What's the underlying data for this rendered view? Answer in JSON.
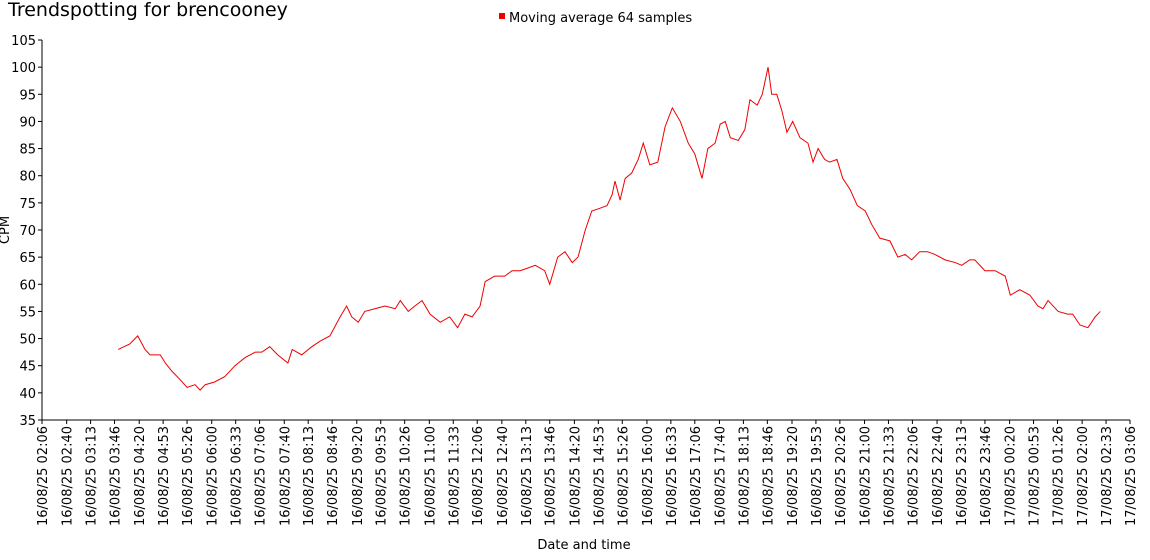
{
  "chart_data": {
    "type": "line",
    "title": "Trendspotting for brencooney",
    "xlabel": "Date and time",
    "ylabel": "CPM",
    "legend": "top",
    "ylim": [
      35,
      105
    ],
    "yticks": [
      35,
      40,
      45,
      50,
      55,
      60,
      65,
      70,
      75,
      80,
      85,
      90,
      95,
      100,
      105
    ],
    "xlim": [
      "16/08/25 02:06",
      "17/08/25 03:06"
    ],
    "xticks": [
      "16/08/25 02:06",
      "16/08/25 02:40",
      "16/08/25 03:13",
      "16/08/25 03:46",
      "16/08/25 04:20",
      "16/08/25 04:53",
      "16/08/25 05:26",
      "16/08/25 06:00",
      "16/08/25 06:33",
      "16/08/25 07:06",
      "16/08/25 07:40",
      "16/08/25 08:13",
      "16/08/25 08:46",
      "16/08/25 09:20",
      "16/08/25 09:53",
      "16/08/25 10:26",
      "16/08/25 11:00",
      "16/08/25 11:33",
      "16/08/25 12:06",
      "16/08/25 12:40",
      "16/08/25 13:13",
      "16/08/25 13:46",
      "16/08/25 14:20",
      "16/08/25 14:53",
      "16/08/25 15:26",
      "16/08/25 16:00",
      "16/08/25 16:33",
      "16/08/25 17:06",
      "16/08/25 17:40",
      "16/08/25 18:13",
      "16/08/25 18:46",
      "16/08/25 19:20",
      "16/08/25 19:53",
      "16/08/25 20:26",
      "16/08/25 21:00",
      "16/08/25 21:33",
      "16/08/25 22:06",
      "16/08/25 22:40",
      "16/08/25 23:13",
      "16/08/25 23:46",
      "17/08/25 00:20",
      "17/08/25 00:53",
      "17/08/25 01:26",
      "17/08/25 02:00",
      "17/08/25 02:33",
      "17/08/25 03:06"
    ],
    "x": [
      "16/08/25 03:51",
      "16/08/25 04:07",
      "16/08/25 04:18",
      "16/08/25 04:28",
      "16/08/25 04:35",
      "16/08/25 04:49",
      "16/08/25 04:56",
      "16/08/25 05:05",
      "16/08/25 05:16",
      "16/08/25 05:26",
      "16/08/25 05:37",
      "16/08/25 05:44",
      "16/08/25 05:51",
      "16/08/25 06:04",
      "16/08/25 06:18",
      "16/08/25 06:32",
      "16/08/25 06:46",
      "16/08/25 07:00",
      "16/08/25 07:09",
      "16/08/25 07:20",
      "16/08/25 07:31",
      "16/08/25 07:45",
      "16/08/25 07:51",
      "16/08/25 08:04",
      "16/08/25 08:18",
      "16/08/25 08:29",
      "16/08/25 08:43",
      "16/08/25 08:57",
      "16/08/25 09:06",
      "16/08/25 09:13",
      "16/08/25 09:22",
      "16/08/25 09:31",
      "16/08/25 09:45",
      "16/08/25 09:59",
      "16/08/25 10:13",
      "16/08/25 10:20",
      "16/08/25 10:31",
      "16/08/25 10:40",
      "16/08/25 10:50",
      "16/08/25 11:01",
      "16/08/25 11:15",
      "16/08/25 11:28",
      "16/08/25 11:39",
      "16/08/25 11:49",
      "16/08/25 11:59",
      "16/08/25 12:10",
      "16/08/25 12:17",
      "16/08/25 12:30",
      "16/08/25 12:44",
      "16/08/25 12:54",
      "16/08/25 13:05",
      "16/08/25 13:16",
      "16/08/25 13:26",
      "16/08/25 13:39",
      "16/08/25 13:46",
      "16/08/25 13:57",
      "16/08/25 14:07",
      "16/08/25 14:17",
      "16/08/25 14:25",
      "16/08/25 14:35",
      "16/08/25 14:44",
      "16/08/25 14:55",
      "16/08/25 15:05",
      "16/08/25 15:12",
      "16/08/25 15:16",
      "16/08/25 15:23",
      "16/08/25 15:30",
      "16/08/25 15:39",
      "16/08/25 15:48",
      "16/08/25 15:55",
      "16/08/25 16:04",
      "16/08/25 16:15",
      "16/08/25 16:25",
      "16/08/25 16:35",
      "16/08/25 16:46",
      "16/08/25 16:57",
      "16/08/25 17:06",
      "16/08/25 17:16",
      "16/08/25 17:24",
      "16/08/25 17:34",
      "16/08/25 17:41",
      "16/08/25 17:48",
      "16/08/25 17:55",
      "16/08/25 18:06",
      "16/08/25 18:15",
      "16/08/25 18:22",
      "16/08/25 18:32",
      "16/08/25 18:39",
      "16/08/25 18:47",
      "16/08/25 18:52",
      "16/08/25 18:59",
      "16/08/25 19:06",
      "16/08/25 19:13",
      "16/08/25 19:21",
      "16/08/25 19:31",
      "16/08/25 19:42",
      "16/08/25 19:49",
      "16/08/25 19:56",
      "16/08/25 20:05",
      "16/08/25 20:12",
      "16/08/25 20:22",
      "16/08/25 20:30",
      "16/08/25 20:40",
      "16/08/25 20:50",
      "16/08/25 21:01",
      "16/08/25 21:10",
      "16/08/25 21:21",
      "16/08/25 21:35",
      "16/08/25 21:46",
      "16/08/25 21:56",
      "16/08/25 22:05",
      "16/08/25 22:16",
      "16/08/25 22:27",
      "16/08/25 22:37",
      "16/08/25 22:51",
      "16/08/25 23:05",
      "16/08/25 23:14",
      "16/08/25 23:25",
      "16/08/25 23:32",
      "16/08/25 23:46",
      "17/08/25 00:00",
      "17/08/25 00:14",
      "17/08/25 00:21",
      "17/08/25 00:34",
      "17/08/25 00:48",
      "17/08/25 00:59",
      "17/08/25 01:06",
      "17/08/25 01:13",
      "17/08/25 01:27",
      "17/08/25 01:40",
      "17/08/25 01:47",
      "17/08/25 01:57",
      "17/08/25 02:08",
      "17/08/25 02:18",
      "17/08/25 02:25"
    ],
    "series": [
      {
        "name": "Moving average 64 samples",
        "color": "#ee0000",
        "values": [
          48,
          49,
          50.5,
          48,
          47,
          47,
          45.5,
          44,
          42.5,
          41,
          41.5,
          40.5,
          41.5,
          42,
          43,
          45,
          46.5,
          47.5,
          47.5,
          48.5,
          47,
          45.5,
          48,
          47,
          48.5,
          49.5,
          50.5,
          54,
          56,
          54,
          53,
          55,
          55.5,
          56,
          55.5,
          57,
          55,
          56,
          57,
          54.5,
          53,
          54,
          52,
          54.5,
          54,
          56,
          60.5,
          61.5,
          61.5,
          62.5,
          62.5,
          63,
          63.5,
          62.5,
          60,
          65,
          66,
          64,
          65,
          70,
          73.5,
          74,
          74.5,
          76.5,
          79,
          75.5,
          79.5,
          80.5,
          83,
          86,
          82,
          82.5,
          89,
          92.5,
          90,
          86,
          84,
          79.5,
          85,
          86,
          89.5,
          90,
          87,
          86.5,
          88.5,
          94,
          93,
          95,
          100,
          95,
          95,
          92,
          88,
          90,
          87,
          86,
          82.5,
          85,
          83,
          82.5,
          83,
          79.5,
          77.5,
          74.5,
          73.5,
          71,
          68.5,
          68,
          65,
          65.5,
          64.5,
          66,
          66,
          65.5,
          64.5,
          64,
          63.5,
          64.5,
          64.5,
          62.5,
          62.5,
          61.5,
          58,
          59,
          58,
          56,
          55.5,
          57,
          55,
          54.5,
          54.5,
          52.5,
          52,
          54,
          55
        ]
      }
    ]
  }
}
